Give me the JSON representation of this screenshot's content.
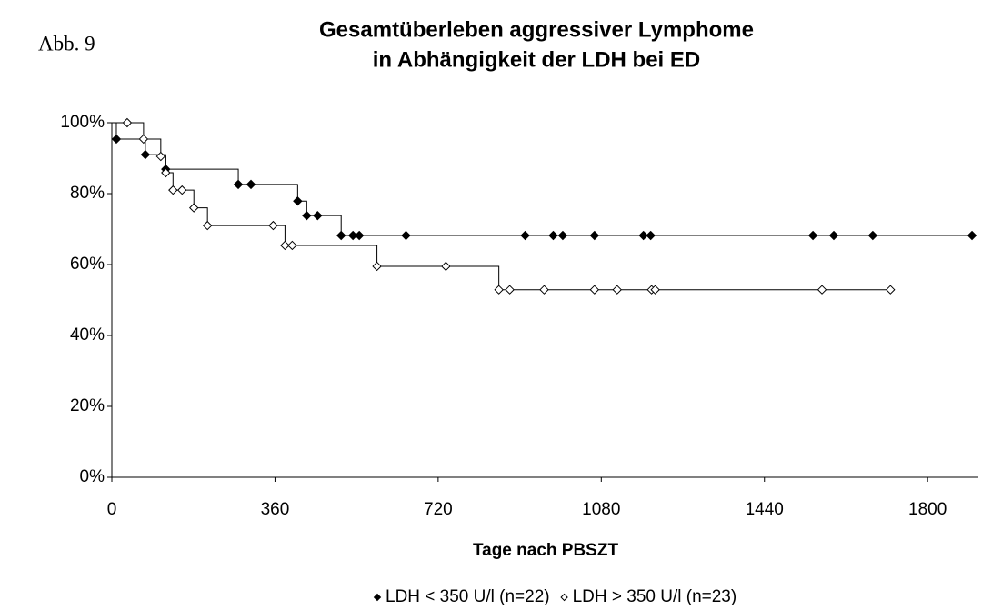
{
  "figure_label": "Abb. 9",
  "chart_data": {
    "type": "step",
    "title": "Gesamtüberleben aggressiver Lymphome",
    "subtitle": "in Abhängigkeit der LDH bei ED",
    "x_label": "Tage nach PBSZT",
    "xlim": [
      0,
      1912
    ],
    "ylim": [
      0,
      100
    ],
    "xticks": [
      0,
      360,
      720,
      1080,
      1440,
      1800
    ],
    "yticks": [
      {
        "value": 0,
        "label": "0%"
      },
      {
        "value": 20,
        "label": "20%"
      },
      {
        "value": 40,
        "label": "40%"
      },
      {
        "value": 60,
        "label": "60%"
      },
      {
        "value": 80,
        "label": "80%"
      },
      {
        "value": 100,
        "label": "100%"
      }
    ],
    "series": [
      {
        "name": "LDH < 350 U/l (n=22)",
        "color": "#000000",
        "marker": "filled",
        "x": [
          10,
          74,
          119,
          279,
          307,
          410,
          430,
          454,
          506,
          532,
          546,
          649,
          912,
          974,
          995,
          1065,
          1173,
          1189,
          1547,
          1593,
          1679,
          1898
        ],
        "values": [
          95.4,
          91,
          86.9,
          82.6,
          82.6,
          77.9,
          73.8,
          73.8,
          68.2,
          68.2,
          68.2,
          68.2,
          68.2,
          68.2,
          68.2,
          68.2,
          68.2,
          68.2,
          68.2,
          68.2,
          68.2,
          68.2
        ]
      },
      {
        "name": "LDH > 350 U/l (n=23)",
        "color": "#000000",
        "marker": "open",
        "x": [
          34,
          70,
          108,
          119,
          135,
          155,
          181,
          211,
          356,
          382,
          398,
          585,
          737,
          854,
          878,
          954,
          1065,
          1115,
          1191,
          1199,
          1567,
          1718
        ],
        "values": [
          100,
          95.4,
          90.5,
          85.9,
          81,
          81,
          76,
          71,
          71,
          65.4,
          65.4,
          59.5,
          59.5,
          52.9,
          52.9,
          52.9,
          52.9,
          52.9,
          52.9,
          52.9,
          52.9,
          52.9
        ]
      }
    ]
  }
}
